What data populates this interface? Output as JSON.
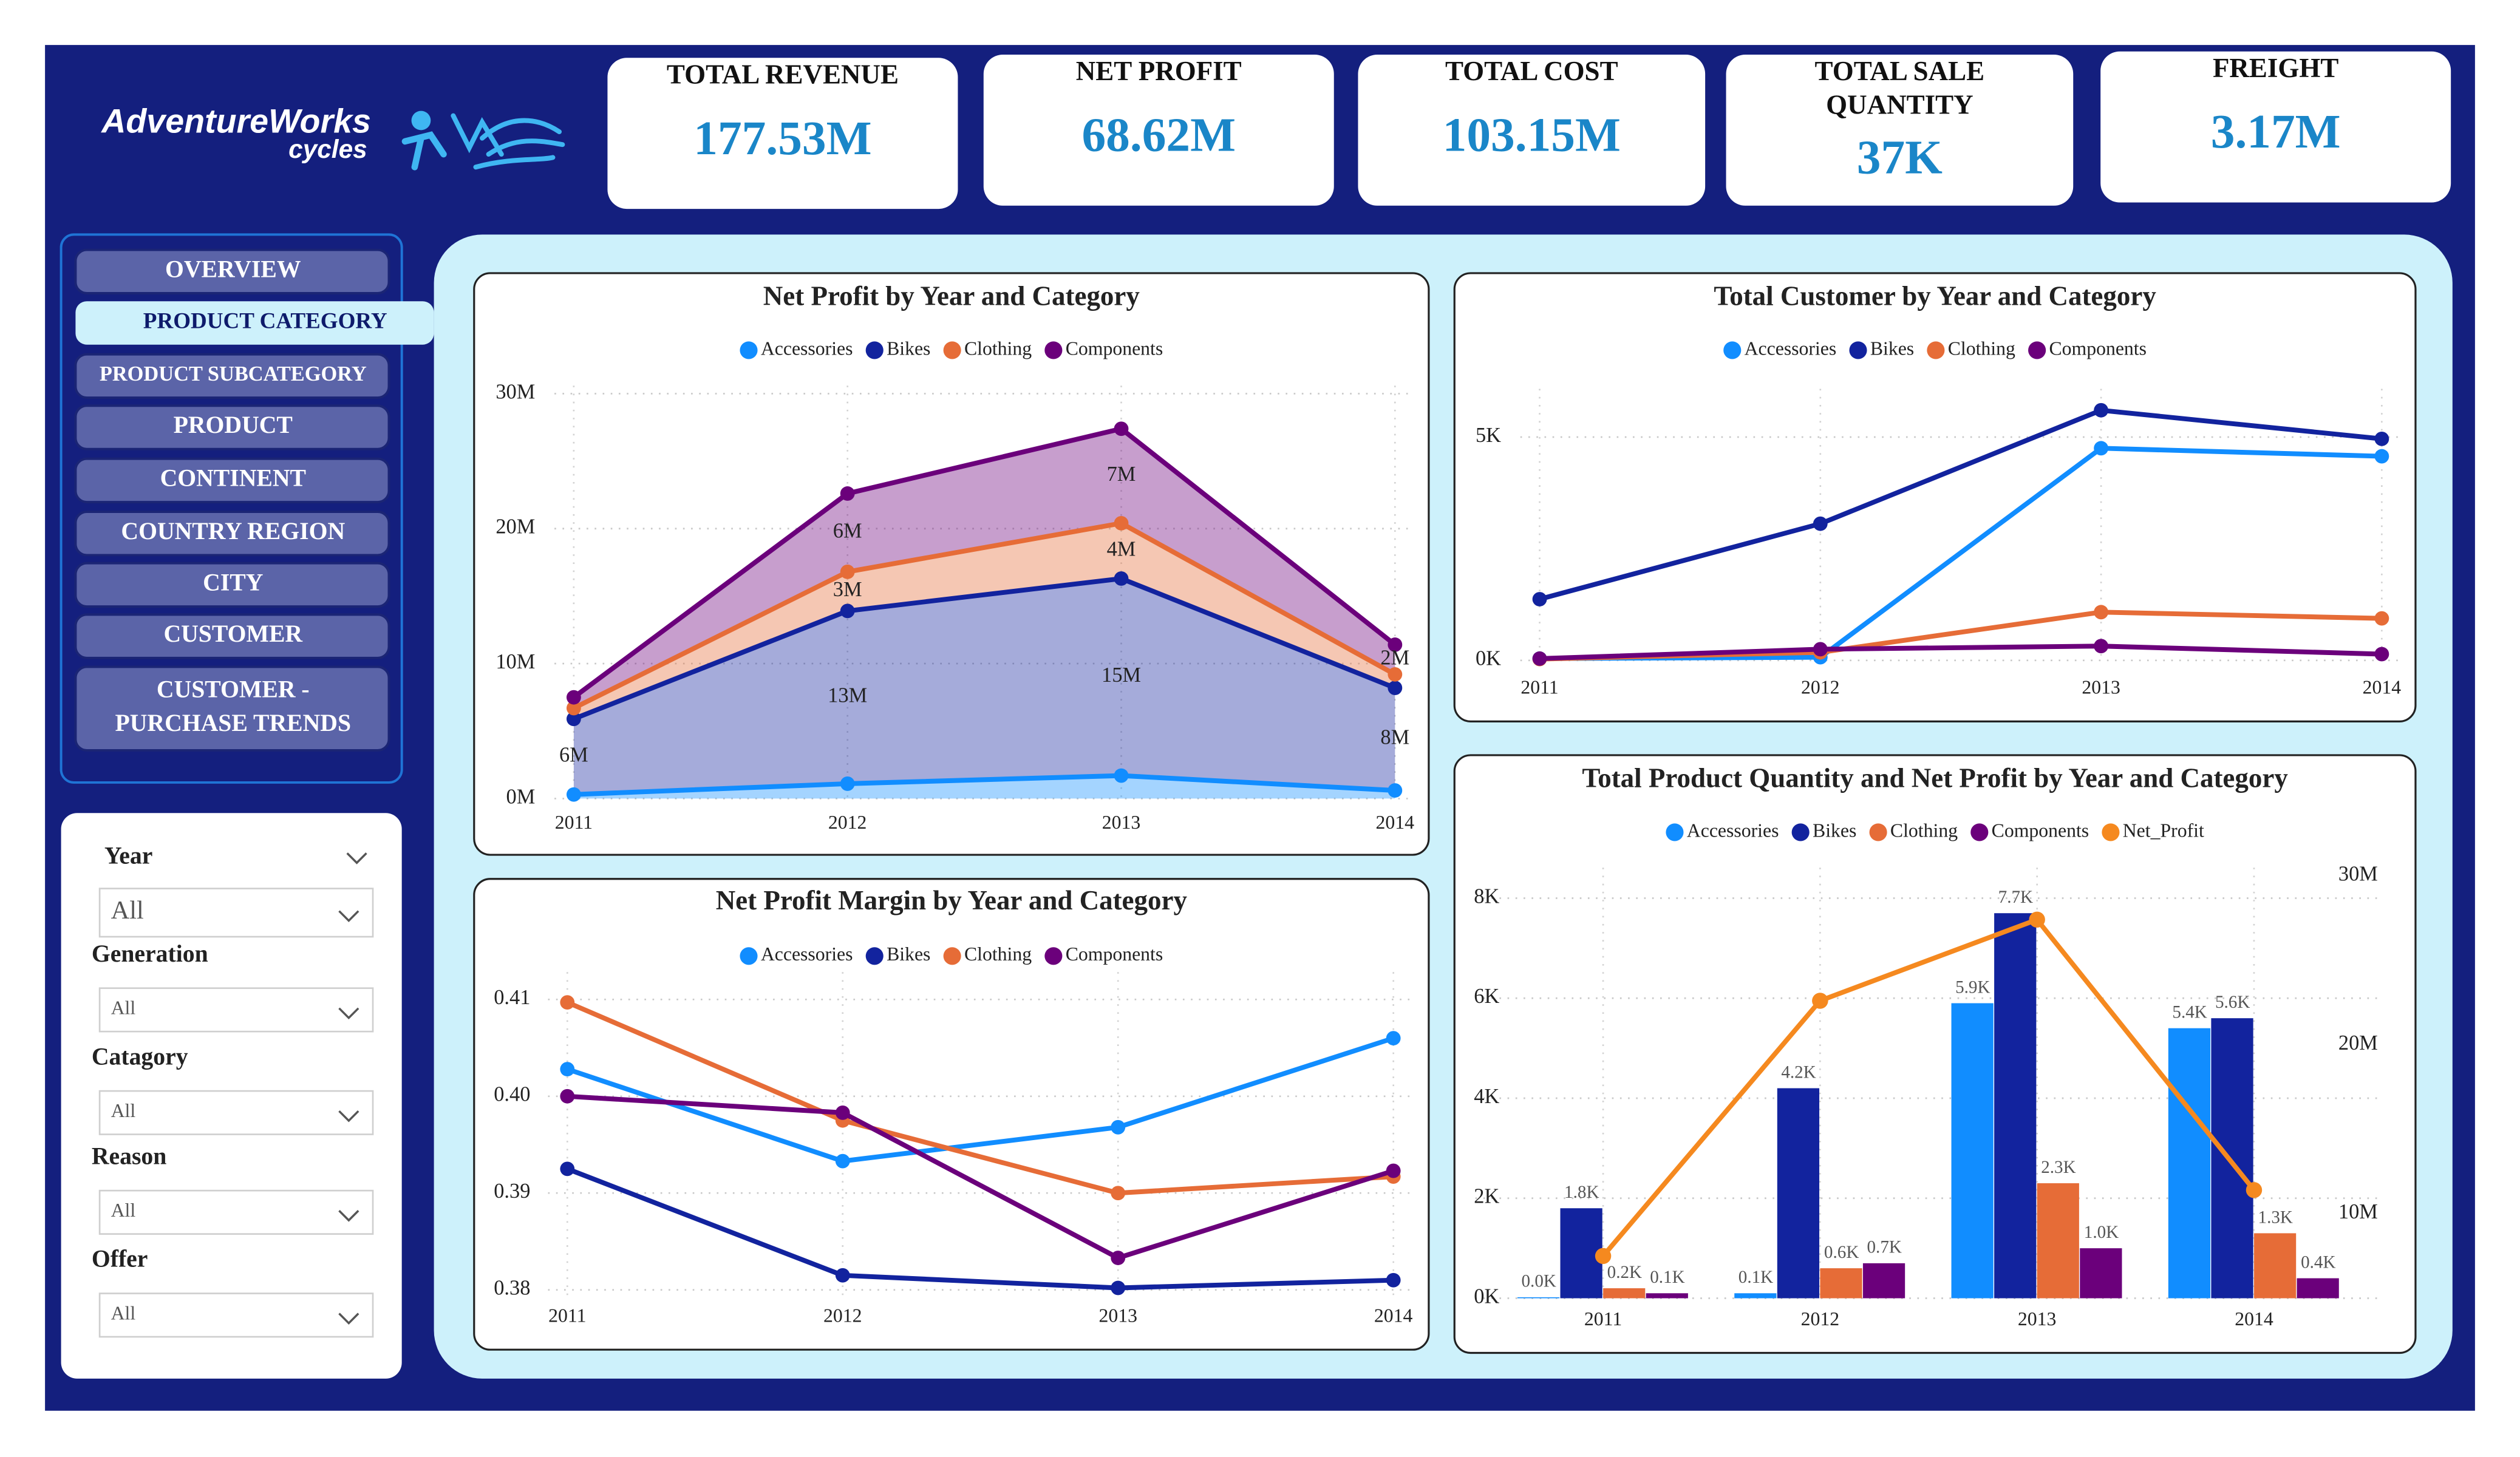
{
  "header": {
    "logo": {
      "brand": "AdventureWorks",
      "sub": "cycles"
    },
    "kpis": [
      {
        "title": "TOTAL REVENUE",
        "value": "177.53M"
      },
      {
        "title": "NET PROFIT",
        "value": "68.62M"
      },
      {
        "title": "TOTAL COST",
        "value": "103.15M"
      },
      {
        "title": [
          "TOTAL SALE",
          "QUANTITY"
        ],
        "value": "37K"
      },
      {
        "title": "FREIGHT",
        "value": "3.17M"
      }
    ]
  },
  "nav": {
    "items": [
      {
        "label": "OVERVIEW",
        "active": false
      },
      {
        "label": "PRODUCT CATEGORY",
        "active": true
      },
      {
        "label": "PRODUCT SUBCATEGORY",
        "active": false
      },
      {
        "label": "PRODUCT",
        "active": false
      },
      {
        "label": "CONTINENT",
        "active": false
      },
      {
        "label": "COUNTRY REGION",
        "active": false
      },
      {
        "label": "CITY",
        "active": false
      },
      {
        "label": "CUSTOMER",
        "active": false
      },
      {
        "label": [
          "CUSTOMER -",
          "PURCHASE TRENDS"
        ],
        "active": false
      }
    ]
  },
  "filters": [
    {
      "label": "Year",
      "value": "All"
    },
    {
      "label": "Generation",
      "value": "All"
    },
    {
      "label": "Catagory",
      "value": "All"
    },
    {
      "label": "Reason",
      "value": "All"
    },
    {
      "label": "Offer",
      "value": "All"
    }
  ],
  "chart_data": [
    {
      "type": "area",
      "stacked": true,
      "title": "Net Profit by Year and Category",
      "categories": [
        "2011",
        "2012",
        "2013",
        "2014"
      ],
      "ylim": [
        0,
        30
      ],
      "yticks": [
        {
          "value": 0,
          "label": "0M"
        },
        {
          "value": 10,
          "label": "10M"
        },
        {
          "value": 20,
          "label": "20M"
        },
        {
          "value": 30,
          "label": "30M"
        }
      ],
      "grid": true,
      "series": [
        {
          "name": "Accessories",
          "color": "#118DFF",
          "values": [
            0.3,
            1.1,
            1.7,
            0.6
          ]
        },
        {
          "name": "Bikes",
          "color": "#12239E",
          "values": [
            5.6,
            12.8,
            14.6,
            7.6
          ],
          "value_labels": [
            "6M",
            "13M",
            "15M",
            "8M"
          ]
        },
        {
          "name": "Clothing",
          "color": "#E66C37",
          "values": [
            0.8,
            2.9,
            4.1,
            1.0
          ],
          "value_labels": [
            null,
            "3M",
            "4M",
            null
          ]
        },
        {
          "name": "Components",
          "color": "#6B007B",
          "values": [
            0.8,
            5.8,
            7.0,
            2.2
          ],
          "value_labels": [
            null,
            "6M",
            "7M",
            "2M"
          ]
        }
      ]
    },
    {
      "type": "line",
      "title": "Net Profit Margin by Year and Category",
      "categories": [
        "2011",
        "2012",
        "2013",
        "2014"
      ],
      "ylim": [
        0.3788,
        0.412
      ],
      "yticks": [
        0.38,
        0.39,
        {
          "value": 0.4,
          "label": "0.40"
        },
        0.41
      ],
      "grid": true,
      "series": [
        {
          "name": "Accessories",
          "color": "#118DFF",
          "values": [
            0.4028,
            0.3933,
            0.3968,
            0.406
          ]
        },
        {
          "name": "Bikes",
          "color": "#12239E",
          "values": [
            0.3925,
            0.3815,
            0.3802,
            0.381
          ]
        },
        {
          "name": "Clothing",
          "color": "#E66C37",
          "values": [
            0.4097,
            0.3975,
            0.39,
            0.3917
          ]
        },
        {
          "name": "Components",
          "color": "#6B007B",
          "values": [
            0.4,
            0.3983,
            0.3833,
            0.3923
          ]
        }
      ]
    },
    {
      "type": "line",
      "title": "Total Customer by Year and Category",
      "categories": [
        "2011",
        "2012",
        "2013",
        "2014"
      ],
      "ylim": [
        0,
        5.9
      ],
      "yticks": [
        {
          "value": 0,
          "label": "0K"
        },
        {
          "value": 5,
          "label": "5K"
        }
      ],
      "grid": true,
      "series": [
        {
          "name": "Accessories",
          "color": "#118DFF",
          "values": [
            0.04,
            0.07,
            4.75,
            4.57
          ]
        },
        {
          "name": "Bikes",
          "color": "#12239E",
          "values": [
            1.37,
            3.06,
            5.6,
            4.96
          ]
        },
        {
          "name": "Clothing",
          "color": "#E66C37",
          "values": [
            0.03,
            0.18,
            1.08,
            0.94
          ]
        },
        {
          "name": "Components",
          "color": "#6B007B",
          "values": [
            0.04,
            0.25,
            0.32,
            0.14
          ]
        }
      ]
    },
    {
      "type": "combo",
      "title": "Total Product Quantity and Net Profit by Year and Category",
      "categories": [
        "2011",
        "2012",
        "2013",
        "2014"
      ],
      "ylim": [
        0,
        8.45
      ],
      "yticks": [
        {
          "value": 0,
          "label": "0K"
        },
        {
          "value": 2,
          "label": "2K"
        },
        {
          "value": 4,
          "label": "4K"
        },
        {
          "value": 6,
          "label": "6K"
        },
        {
          "value": 8,
          "label": "8K"
        }
      ],
      "y2lim": [
        5,
        30
      ],
      "y2ticks": [
        {
          "value": 10,
          "label": "10M"
        },
        {
          "value": 20,
          "label": "20M"
        },
        {
          "value": 30,
          "label": "30M"
        }
      ],
      "grid": true,
      "series": [
        {
          "name": "Accessories",
          "type": "bar",
          "color": "#118DFF",
          "values": [
            0.02,
            0.1,
            5.9,
            5.4
          ],
          "value_labels": [
            "0.0K",
            "0.1K",
            "5.9K",
            "5.4K"
          ]
        },
        {
          "name": "Bikes",
          "type": "bar",
          "color": "#12239E",
          "values": [
            1.8,
            4.2,
            7.7,
            5.6
          ],
          "value_labels": [
            "1.8K",
            "4.2K",
            "7.7K",
            "5.6K"
          ]
        },
        {
          "name": "Clothing",
          "type": "bar",
          "color": "#E66C37",
          "values": [
            0.2,
            0.6,
            2.3,
            1.3
          ],
          "value_labels": [
            "0.2K",
            "0.6K",
            "2.3K",
            "1.3K"
          ]
        },
        {
          "name": "Components",
          "type": "bar",
          "color": "#6B007B",
          "values": [
            0.1,
            0.7,
            1.0,
            0.4
          ],
          "value_labels": [
            "0.1K",
            "0.7K",
            "1.0K",
            "0.4K"
          ]
        },
        {
          "name": "Net_Profit",
          "type": "line",
          "axis": "y2",
          "color": "#F5891F",
          "values": [
            7.5,
            22.6,
            27.4,
            11.4
          ]
        }
      ]
    }
  ]
}
